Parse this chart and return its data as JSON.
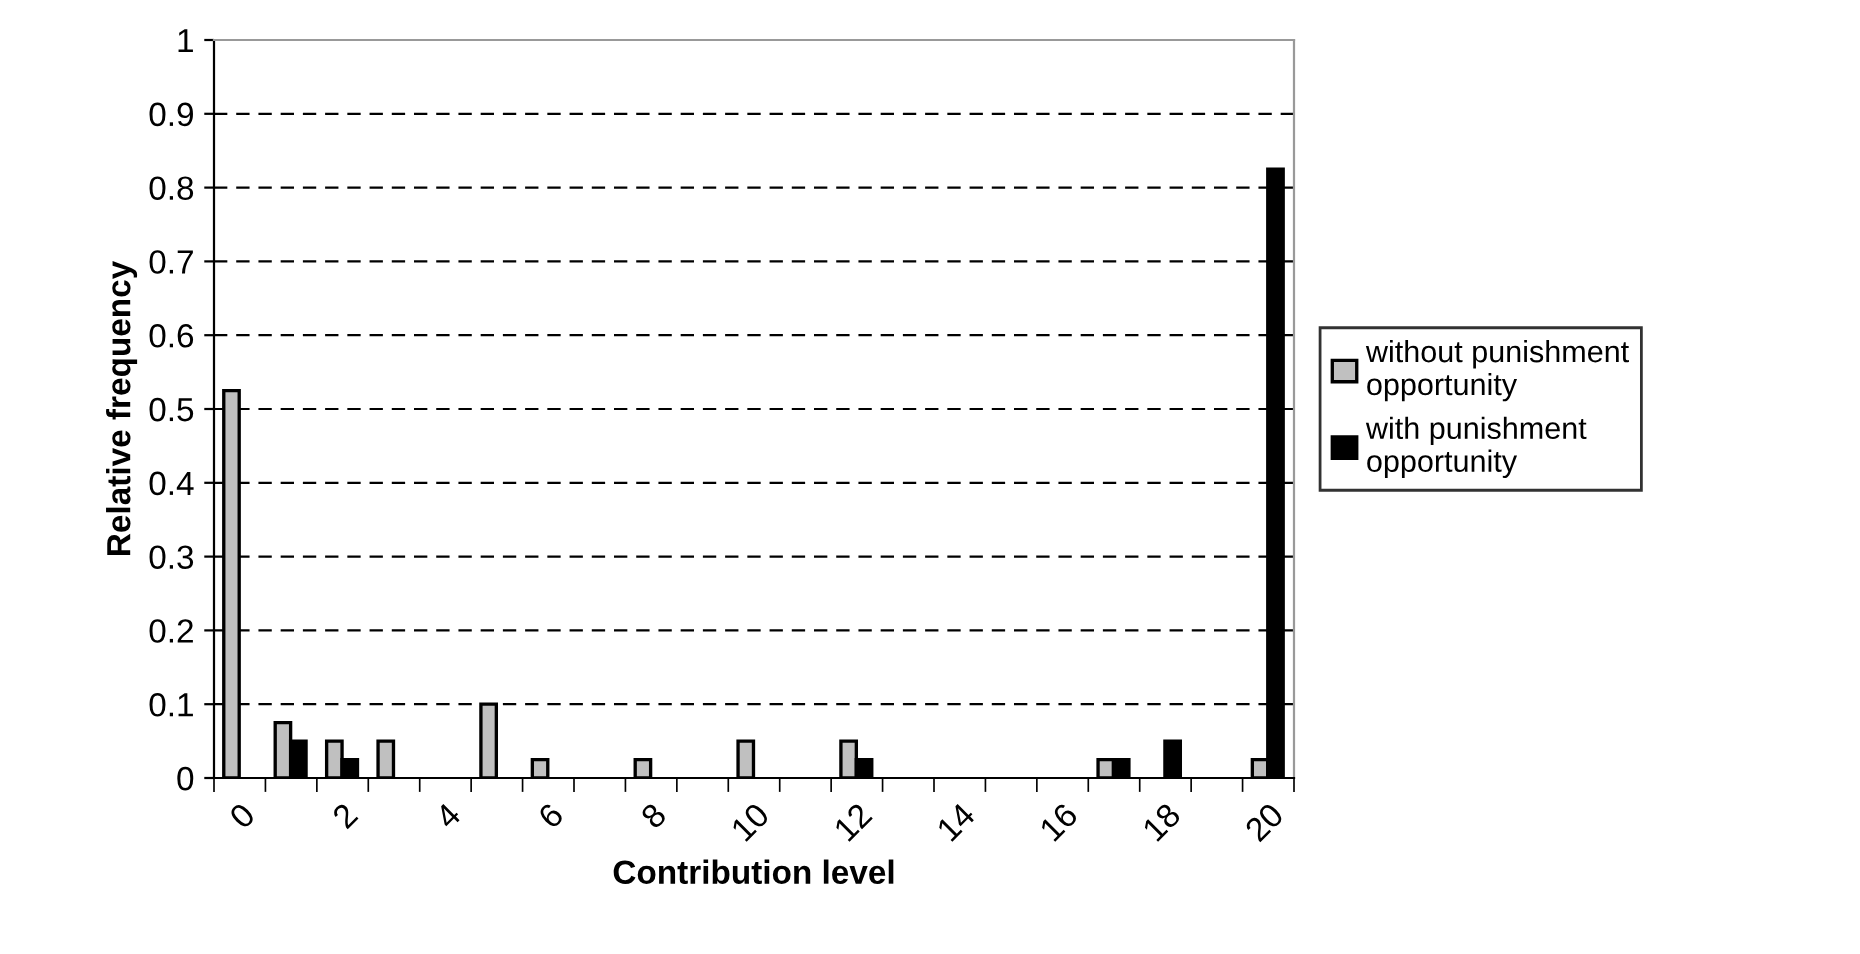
{
  "chart_data": {
    "type": "bar",
    "xlabel": "Contribution level",
    "ylabel": "Relative frequency",
    "categories": [
      "0",
      null,
      "2",
      null,
      "4",
      null,
      "6",
      null,
      "8",
      null,
      "10",
      null,
      "12",
      null,
      "14",
      null,
      "16",
      null,
      "18",
      null,
      "20"
    ],
    "series": [
      {
        "name": "without punishment opportunity",
        "color": "#c0c0c0",
        "values": [
          0.525,
          0.075,
          0.05,
          0.05,
          0,
          0.1,
          0.025,
          0,
          0.025,
          0,
          0.05,
          0,
          0.05,
          0,
          0,
          0,
          0,
          0.025,
          0,
          0,
          0.025
        ]
      },
      {
        "name": "with punishment opportunity",
        "color": "#000000",
        "values": [
          0,
          0.05,
          0.025,
          0,
          0,
          0,
          0,
          0,
          0,
          0,
          0,
          0,
          0.025,
          0,
          0,
          0,
          0,
          0.025,
          0.05,
          0,
          0.825
        ]
      }
    ],
    "ylim": [
      0,
      1
    ],
    "yticks": [
      0,
      0.1,
      0.2,
      0.3,
      0.4,
      0.5,
      0.6,
      0.7,
      0.8,
      0.9,
      1
    ],
    "grid": "y",
    "legend": "right"
  }
}
